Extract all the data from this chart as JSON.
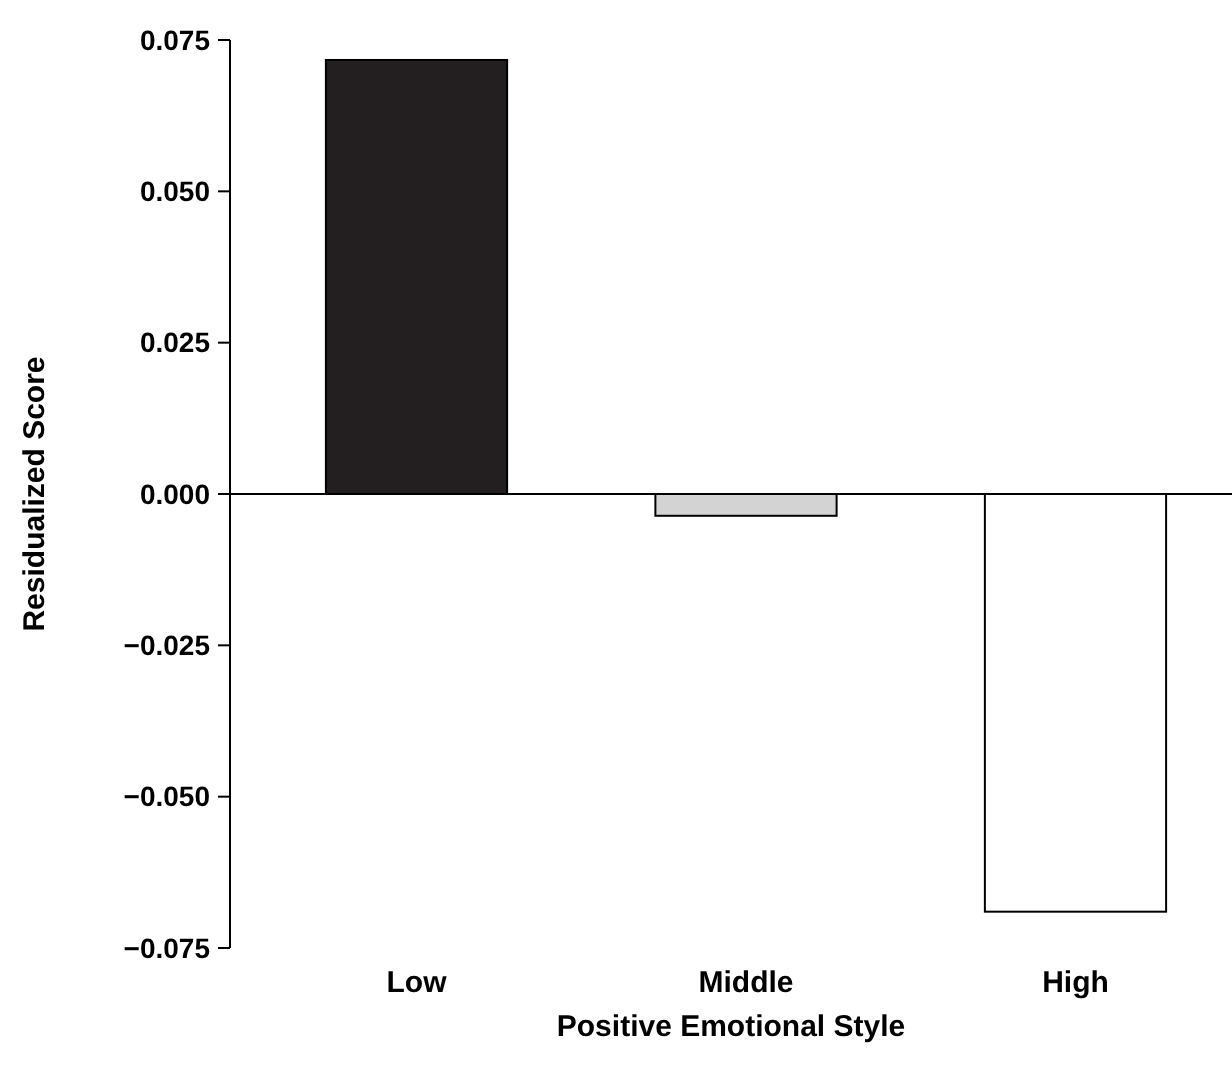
{
  "chart_data": {
    "type": "bar",
    "xlabel": "Positive Emotional Style",
    "ylabel": "Residualized Score",
    "categories": [
      "Low",
      "Middle",
      "High"
    ],
    "values": [
      0.0717,
      -0.0036,
      -0.069
    ],
    "colors": [
      "#231f20",
      "#d3d3d3",
      "#ffffff"
    ],
    "ylim": [
      -0.075,
      0.075
    ],
    "yticks": [
      {
        "value": -0.075,
        "label": "−0.075"
      },
      {
        "value": -0.05,
        "label": "−0.050"
      },
      {
        "value": -0.025,
        "label": "−0.025"
      },
      {
        "value": 0,
        "label": "0.000"
      },
      {
        "value": 0.025,
        "label": "0.025"
      },
      {
        "value": 0.05,
        "label": "0.050"
      },
      {
        "value": 0.075,
        "label": "0.075"
      }
    ],
    "ref_lines": [
      {
        "axis": "y",
        "value": 0,
        "color": "#000000"
      }
    ]
  }
}
